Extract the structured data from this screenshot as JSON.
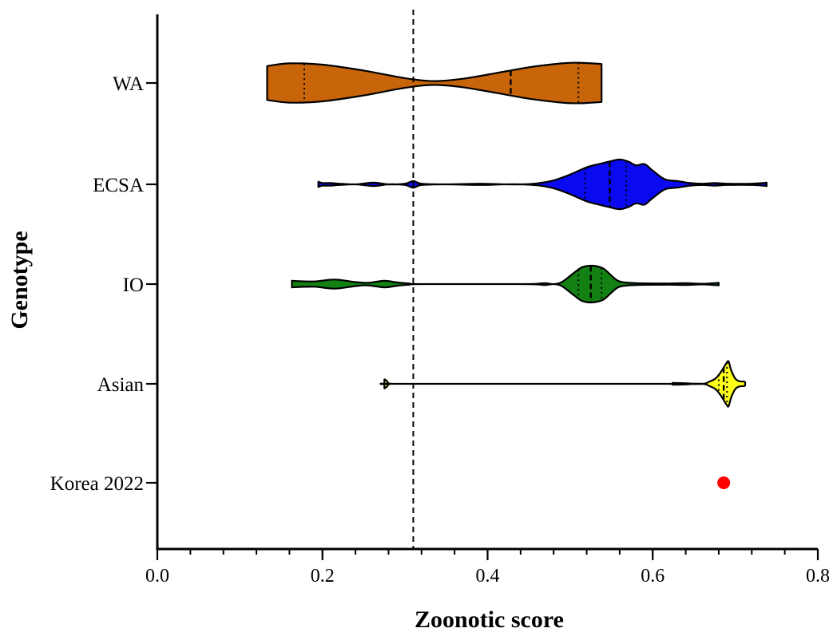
{
  "chart_data": {
    "type": "violin",
    "orientation": "horizontal",
    "xlabel": "Zoonotic score",
    "ylabel": "Genotype",
    "xlim": [
      0.0,
      0.8
    ],
    "x_ticks": [
      {
        "value": 0.0,
        "label": "0.0"
      },
      {
        "value": 0.2,
        "label": "0.2"
      },
      {
        "value": 0.4,
        "label": "0.4"
      },
      {
        "value": 0.6,
        "label": "0.6"
      },
      {
        "value": 0.8,
        "label": "0.8"
      }
    ],
    "x_minor_step": 0.04,
    "grid": false,
    "reference_line": {
      "x": 0.31,
      "style": "dashed",
      "color": "#000000"
    },
    "categories": [
      "WA",
      "ECSA",
      "IO",
      "Asian",
      "Korea 2022"
    ],
    "series": [
      {
        "category": "WA",
        "color": "#c8650a",
        "range": [
          0.133,
          0.538
        ],
        "median": 0.428,
        "quartiles": [
          0.178,
          0.51
        ],
        "density_profile": [
          [
            0.133,
            0.52
          ],
          [
            0.16,
            0.6
          ],
          [
            0.2,
            0.56
          ],
          [
            0.25,
            0.38
          ],
          [
            0.29,
            0.19
          ],
          [
            0.32,
            0.08
          ],
          [
            0.34,
            0.06
          ],
          [
            0.37,
            0.13
          ],
          [
            0.41,
            0.3
          ],
          [
            0.45,
            0.48
          ],
          [
            0.49,
            0.6
          ],
          [
            0.51,
            0.62
          ],
          [
            0.538,
            0.58
          ]
        ]
      },
      {
        "category": "ECSA",
        "color": "#0a0af0",
        "range": [
          0.195,
          0.738
        ],
        "median": 0.548,
        "quartiles": [
          0.518,
          0.568
        ],
        "density_profile": [
          [
            0.195,
            0.08
          ],
          [
            0.2,
            0.04
          ],
          [
            0.21,
            0.04
          ],
          [
            0.22,
            0.02
          ],
          [
            0.24,
            0.0
          ],
          [
            0.262,
            0.05
          ],
          [
            0.28,
            0.0
          ],
          [
            0.3,
            0.02
          ],
          [
            0.31,
            0.1
          ],
          [
            0.32,
            0.02
          ],
          [
            0.35,
            0.0
          ],
          [
            0.39,
            0.02
          ],
          [
            0.42,
            0.0
          ],
          [
            0.44,
            0.0
          ],
          [
            0.46,
            0.03
          ],
          [
            0.48,
            0.12
          ],
          [
            0.5,
            0.3
          ],
          [
            0.52,
            0.52
          ],
          [
            0.535,
            0.62
          ],
          [
            0.548,
            0.7
          ],
          [
            0.56,
            0.76
          ],
          [
            0.57,
            0.7
          ],
          [
            0.58,
            0.58
          ],
          [
            0.59,
            0.62
          ],
          [
            0.6,
            0.42
          ],
          [
            0.615,
            0.15
          ],
          [
            0.63,
            0.1
          ],
          [
            0.645,
            0.04
          ],
          [
            0.66,
            0.02
          ],
          [
            0.675,
            0.04
          ],
          [
            0.69,
            0.02
          ],
          [
            0.72,
            0.02
          ],
          [
            0.738,
            0.05
          ]
        ]
      },
      {
        "category": "IO",
        "color": "#128012",
        "range": [
          0.163,
          0.68
        ],
        "median": 0.525,
        "quartiles": [
          0.51,
          0.538
        ],
        "density_profile": [
          [
            0.163,
            0.1
          ],
          [
            0.19,
            0.08
          ],
          [
            0.215,
            0.14
          ],
          [
            0.24,
            0.06
          ],
          [
            0.255,
            0.04
          ],
          [
            0.275,
            0.1
          ],
          [
            0.29,
            0.05
          ],
          [
            0.305,
            0.02
          ],
          [
            0.32,
            0.0
          ],
          [
            0.44,
            0.0
          ],
          [
            0.46,
            0.01
          ],
          [
            0.47,
            0.03
          ],
          [
            0.48,
            0.0
          ],
          [
            0.49,
            0.06
          ],
          [
            0.505,
            0.35
          ],
          [
            0.515,
            0.52
          ],
          [
            0.527,
            0.56
          ],
          [
            0.54,
            0.48
          ],
          [
            0.55,
            0.26
          ],
          [
            0.56,
            0.08
          ],
          [
            0.58,
            0.03
          ],
          [
            0.62,
            0.02
          ],
          [
            0.64,
            0.03
          ],
          [
            0.66,
            0.01
          ],
          [
            0.68,
            0.04
          ]
        ]
      },
      {
        "category": "Asian",
        "color": "#ffff1a",
        "range": [
          0.275,
          0.712
        ],
        "median": 0.686,
        "quartiles": [
          0.68,
          0.69
        ],
        "density_profile": [
          [
            0.275,
            0.14
          ],
          [
            0.278,
            0.09
          ],
          [
            0.282,
            0.0
          ],
          [
            0.3,
            0.0
          ],
          [
            0.62,
            0.0
          ],
          [
            0.624,
            0.03
          ],
          [
            0.628,
            0.0
          ],
          [
            0.66,
            0.0
          ],
          [
            0.668,
            0.06
          ],
          [
            0.676,
            0.16
          ],
          [
            0.682,
            0.34
          ],
          [
            0.686,
            0.5
          ],
          [
            0.69,
            0.66
          ],
          [
            0.692,
            0.68
          ],
          [
            0.695,
            0.42
          ],
          [
            0.7,
            0.16
          ],
          [
            0.705,
            0.08
          ],
          [
            0.71,
            0.07
          ],
          [
            0.712,
            0.05
          ]
        ]
      },
      {
        "category": "Korea 2022",
        "type": "point",
        "color": "#ff0000",
        "value": 0.686
      }
    ]
  }
}
